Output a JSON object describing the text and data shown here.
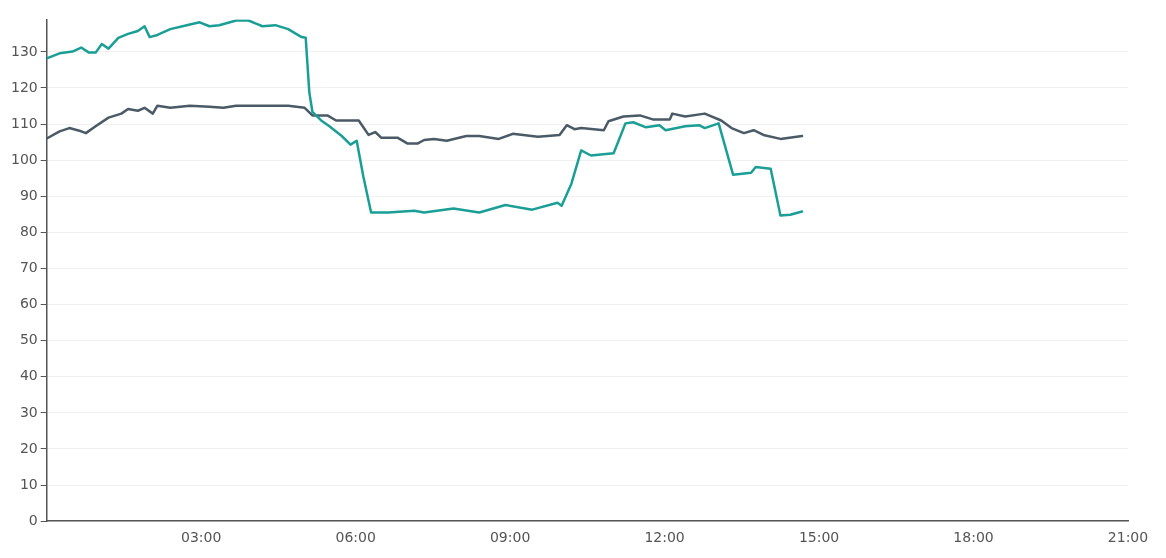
{
  "chart_data": {
    "type": "line",
    "xlim": [
      0,
      21
    ],
    "xticks": [
      {
        "value": 3,
        "label": "03:00"
      },
      {
        "value": 6,
        "label": "06:00"
      },
      {
        "value": 9,
        "label": "09:00"
      },
      {
        "value": 12,
        "label": "12:00"
      },
      {
        "value": 15,
        "label": "15:00"
      },
      {
        "value": 18,
        "label": "18:00"
      },
      {
        "value": 21,
        "label": "21:00"
      }
    ],
    "ylim": [
      0,
      139
    ],
    "yticks": [
      0,
      10,
      20,
      30,
      40,
      50,
      60,
      70,
      80,
      90,
      100,
      110,
      120,
      130
    ],
    "grid": "y",
    "legend": false,
    "marker": "none",
    "line_style": "solid",
    "series": [
      {
        "color": "#1a9e96",
        "x": [
          0,
          0.25,
          0.5,
          0.67,
          0.82,
          0.95,
          1.07,
          1.2,
          1.39,
          1.58,
          1.77,
          1.9,
          2.0,
          2.15,
          2.4,
          2.72,
          2.97,
          3.16,
          3.35,
          3.68,
          3.92,
          4.19,
          4.44,
          4.69,
          4.95,
          5.03,
          5.1,
          5.16,
          5.33,
          5.49,
          5.73,
          5.9,
          6.02,
          6.15,
          6.3,
          6.63,
          7.14,
          7.33,
          7.9,
          8.4,
          8.91,
          9.43,
          9.92,
          10.0,
          10.19,
          10.38,
          10.57,
          11.01,
          11.24,
          11.39,
          11.64,
          11.9,
          12.02,
          12.4,
          12.67,
          12.78,
          13.05,
          13.33,
          13.68,
          13.77,
          14.06,
          14.25,
          14.44,
          14.67
        ],
        "values": [
          128.2,
          129.6,
          130.1,
          131.2,
          129.8,
          129.8,
          132.2,
          130.9,
          133.9,
          135.0,
          135.8,
          137.1,
          134.1,
          134.7,
          136.3,
          137.4,
          138.2,
          137.1,
          137.4,
          138.7,
          138.7,
          137.1,
          137.4,
          136.3,
          134.1,
          133.9,
          118.8,
          113.4,
          111.0,
          109.4,
          106.7,
          104.3,
          105.4,
          95.4,
          85.5,
          85.5,
          86.0,
          85.5,
          86.6,
          85.5,
          87.6,
          86.3,
          88.2,
          87.4,
          93.5,
          102.7,
          101.3,
          101.9,
          110.2,
          110.5,
          109.1,
          109.7,
          108.3,
          109.4,
          109.7,
          108.9,
          110.2,
          96.0,
          96.5,
          98.1,
          97.6,
          84.7,
          84.9,
          85.8
        ]
      },
      {
        "color": "#4a5a66",
        "x": [
          0,
          0.25,
          0.44,
          0.67,
          0.76,
          0.95,
          1.2,
          1.45,
          1.58,
          1.77,
          1.9,
          2.06,
          2.15,
          2.4,
          2.78,
          3.16,
          3.43,
          3.68,
          4.3,
          4.69,
          5.01,
          5.16,
          5.45,
          5.62,
          6.06,
          6.25,
          6.38,
          6.5,
          6.82,
          7.01,
          7.2,
          7.33,
          7.52,
          7.77,
          8.15,
          8.4,
          8.78,
          9.05,
          9.54,
          9.96,
          10.1,
          10.25,
          10.38,
          10.82,
          10.91,
          11.2,
          11.52,
          11.77,
          12.1,
          12.15,
          12.4,
          12.78,
          13.1,
          13.3,
          13.54,
          13.73,
          13.92,
          14.25,
          14.67
        ],
        "values": [
          106.0,
          108.0,
          108.9,
          108.0,
          107.5,
          109.4,
          111.8,
          112.9,
          114.2,
          113.7,
          114.5,
          112.9,
          115.1,
          114.5,
          115.1,
          114.8,
          114.5,
          115.1,
          115.1,
          115.1,
          114.5,
          112.4,
          112.4,
          111.0,
          111.0,
          107.0,
          107.8,
          106.2,
          106.2,
          104.6,
          104.6,
          105.6,
          105.9,
          105.4,
          106.7,
          106.7,
          105.9,
          107.3,
          106.5,
          107.0,
          109.7,
          108.6,
          108.9,
          108.3,
          110.8,
          112.1,
          112.4,
          111.3,
          111.3,
          112.9,
          112.1,
          112.9,
          111.0,
          108.9,
          107.5,
          108.3,
          107.0,
          105.9,
          106.7
        ]
      }
    ]
  }
}
